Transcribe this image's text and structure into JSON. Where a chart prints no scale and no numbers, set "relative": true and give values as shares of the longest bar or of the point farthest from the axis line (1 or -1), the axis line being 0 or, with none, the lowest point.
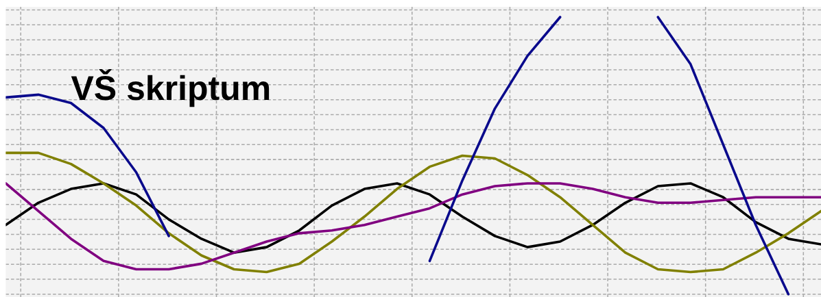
{
  "chart_data": {
    "type": "line",
    "title": "VŠ skriptum",
    "relative": true,
    "grid": true,
    "tick_labels": false,
    "legend": false,
    "marker": "none",
    "line_style": "solid",
    "categories": [
      null,
      null,
      null,
      null,
      null,
      null,
      null,
      null,
      null,
      null,
      null,
      null,
      null,
      null,
      null,
      null,
      null,
      null,
      null,
      null,
      null,
      null,
      null,
      null,
      null,
      null
    ],
    "series": [
      {
        "color": "#000000",
        "values": [
          0.25,
          0.33,
          0.38,
          0.4,
          0.36,
          0.27,
          0.2,
          0.15,
          0.17,
          0.23,
          0.32,
          0.38,
          0.4,
          0.36,
          0.28,
          0.21,
          0.17,
          0.19,
          0.25,
          0.33,
          0.39,
          0.4,
          0.35,
          0.26,
          0.2,
          0.18
        ]
      },
      {
        "color": "#808000",
        "values": [
          0.51,
          0.51,
          0.47,
          0.4,
          0.32,
          0.22,
          0.14,
          0.09,
          0.08,
          0.11,
          0.19,
          0.28,
          0.38,
          0.46,
          0.5,
          0.49,
          0.43,
          0.35,
          0.25,
          0.15,
          0.09,
          0.08,
          0.09,
          0.15,
          0.22,
          0.3
        ]
      },
      {
        "color": "#800080",
        "values": [
          0.4,
          0.3,
          0.2,
          0.12,
          0.09,
          0.09,
          0.11,
          0.15,
          0.19,
          0.22,
          0.23,
          0.25,
          0.28,
          0.31,
          0.36,
          0.39,
          0.4,
          0.4,
          0.38,
          0.35,
          0.33,
          0.33,
          0.34,
          0.35,
          0.35,
          0.35
        ]
      },
      {
        "color": "#0a0a8c",
        "values": [
          0.71,
          0.72,
          0.69,
          0.6,
          0.44,
          0.21,
          null,
          null,
          null,
          null,
          null,
          null,
          null,
          0.12,
          0.41,
          0.67,
          0.86,
          1.0,
          null,
          null,
          1.0,
          0.83,
          0.54,
          0.25,
          0.0,
          null
        ]
      }
    ]
  }
}
